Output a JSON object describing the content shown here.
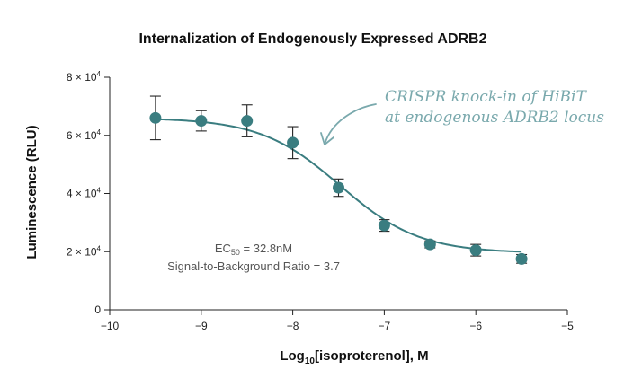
{
  "chart_data": {
    "type": "scatter",
    "title": "Internalization of Endogenously Expressed ADRB2",
    "xlabel": {
      "prefix": "Log",
      "sub": "10",
      "suffix": "[isoproterenol], M"
    },
    "ylabel": "Luminescence (RLU)",
    "xlim": [
      -10,
      -5
    ],
    "ylim": [
      0,
      80000
    ],
    "x_ticks": [
      {
        "value": -10,
        "label": "−10"
      },
      {
        "value": -9,
        "label": "−9"
      },
      {
        "value": -8,
        "label": "−8"
      },
      {
        "value": -7,
        "label": "−7"
      },
      {
        "value": -6,
        "label": "−6"
      },
      {
        "value": -5,
        "label": "−5"
      }
    ],
    "y_ticks": [
      {
        "value": 0,
        "label": "0",
        "base": "",
        "exp": ""
      },
      {
        "value": 20000,
        "label": "",
        "base": "2 × 10",
        "exp": "4"
      },
      {
        "value": 40000,
        "label": "",
        "base": "4 × 10",
        "exp": "4"
      },
      {
        "value": 60000,
        "label": "",
        "base": "6 × 10",
        "exp": "4"
      },
      {
        "value": 80000,
        "label": "",
        "base": "8 × 10",
        "exp": "4"
      }
    ],
    "grid": false,
    "series": [
      {
        "color": "#3a7d80",
        "points": [
          {
            "x": -9.5,
            "y": 66000,
            "err": 7500
          },
          {
            "x": -9.0,
            "y": 65000,
            "err": 3500
          },
          {
            "x": -8.5,
            "y": 65000,
            "err": 5500
          },
          {
            "x": -8.0,
            "y": 57500,
            "err": 5500
          },
          {
            "x": -7.5,
            "y": 42000,
            "err": 3000
          },
          {
            "x": -7.0,
            "y": 29000,
            "err": 2000
          },
          {
            "x": -6.5,
            "y": 22500,
            "err": 1200
          },
          {
            "x": -6.0,
            "y": 20500,
            "err": 2000
          },
          {
            "x": -5.5,
            "y": 17500,
            "err": 1500
          }
        ],
        "fit": {
          "top": 66000,
          "bottom": 19500,
          "log_ec50": -7.484,
          "hill": 1.0
        }
      }
    ],
    "annotations": {
      "ec50": {
        "prefix": "EC",
        "sub": "50",
        "suffix": " = 32.8nM"
      },
      "sb_ratio": "Signal-to-Background Ratio = 3.7",
      "callout": {
        "line1": "CRISPR knock-in of HiBiT",
        "line2": "at endogenous ADRB2 locus",
        "color": "#7aa9ad"
      }
    }
  }
}
